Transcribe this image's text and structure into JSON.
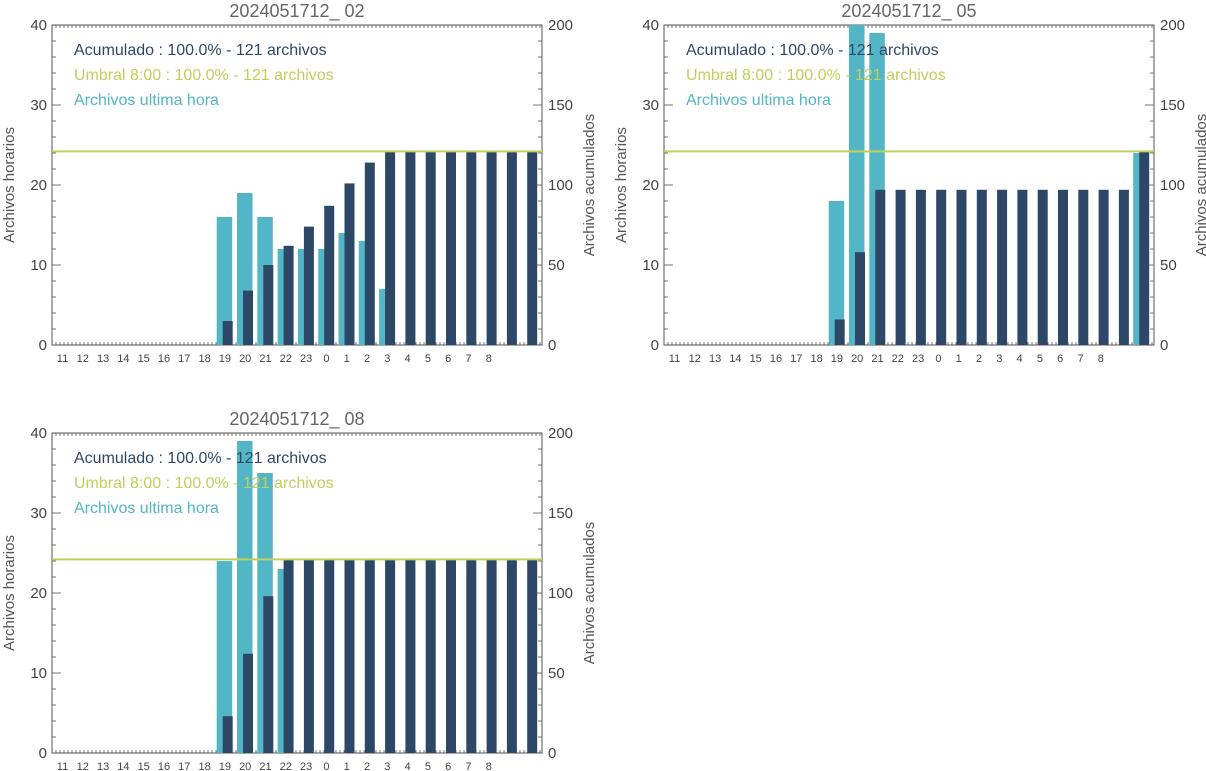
{
  "colors": {
    "hourly": "#52b6c6",
    "cumulative": "#2d4866",
    "threshold": "#c2cf59",
    "axis": "#555555"
  },
  "chart_data": [
    {
      "type": "bar",
      "title": "2024051712_ 02",
      "ylabel_left": "Archivos horarios",
      "ylabel_right": "Archivos acumulados",
      "ylim_left": [
        0,
        40
      ],
      "ylim_right": [
        0,
        200
      ],
      "yticks_left": [
        "0",
        "10",
        "20",
        "30",
        "40"
      ],
      "yticks_right": [
        "0",
        "50",
        "100",
        "150",
        "200"
      ],
      "categories": [
        "11",
        "12",
        "13",
        "14",
        "15",
        "16",
        "17",
        "18",
        "19",
        "20",
        "21",
        "22",
        "23",
        "0",
        "1",
        "2",
        "3",
        "4",
        "5",
        "6",
        "7",
        "8"
      ],
      "legend": [
        {
          "text": "Acumulado : 100.0% - 121 archivos"
        },
        {
          "text": "Umbral 8:00 : 100.0% - 121 archivos"
        },
        {
          "text": "Archivos ultima hora"
        }
      ],
      "series": [
        {
          "name": "Archivos ultima hora",
          "axis": "left",
          "values": [
            0,
            0,
            0,
            0,
            16,
            19,
            16,
            12,
            12,
            12,
            14,
            13,
            7,
            0,
            0,
            0,
            0,
            0,
            0,
            0,
            0,
            0
          ]
        },
        {
          "name": "Acumulado",
          "axis": "right",
          "values": [
            0,
            0,
            0,
            0,
            15,
            34,
            50,
            62,
            74,
            87,
            101,
            114,
            121,
            121,
            121,
            121,
            121,
            121,
            121,
            121,
            121,
            121
          ]
        }
      ],
      "threshold_right": 121
    },
    {
      "type": "bar",
      "title": "2024051712_ 05",
      "ylabel_left": "Archivos horarios",
      "ylabel_right": "Archivos acumulados",
      "ylim_left": [
        0,
        40
      ],
      "ylim_right": [
        0,
        200
      ],
      "yticks_left": [
        "0",
        "10",
        "20",
        "30",
        "40"
      ],
      "yticks_right": [
        "0",
        "50",
        "100",
        "150",
        "200"
      ],
      "categories": [
        "11",
        "12",
        "13",
        "14",
        "15",
        "16",
        "17",
        "18",
        "19",
        "20",
        "21",
        "22",
        "23",
        "0",
        "1",
        "2",
        "3",
        "4",
        "5",
        "6",
        "7",
        "8"
      ],
      "legend": [
        {
          "text": "Acumulado : 100.0% - 121 archivos"
        },
        {
          "text": "Umbral 8:00 : 100.0% - 121 archivos"
        },
        {
          "text": "Archivos ultima hora"
        }
      ],
      "series": [
        {
          "name": "Archivos ultima hora",
          "axis": "left",
          "values": [
            0,
            0,
            0,
            0,
            18,
            41,
            39,
            0,
            0,
            0,
            0,
            0,
            0,
            0,
            0,
            0,
            0,
            0,
            0,
            24,
            0,
            0
          ]
        },
        {
          "name": "Acumulado",
          "axis": "right",
          "values": [
            0,
            0,
            0,
            0,
            16,
            58,
            97,
            97,
            97,
            97,
            97,
            97,
            97,
            97,
            97,
            97,
            97,
            97,
            97,
            121,
            121,
            121
          ]
        }
      ],
      "threshold_right": 121
    },
    {
      "type": "bar",
      "title": "2024051712_ 08",
      "ylabel_left": "Archivos horarios",
      "ylabel_right": "Archivos acumulados",
      "ylim_left": [
        0,
        40
      ],
      "ylim_right": [
        0,
        200
      ],
      "yticks_left": [
        "0",
        "10",
        "20",
        "30",
        "40"
      ],
      "yticks_right": [
        "0",
        "50",
        "100",
        "150",
        "200"
      ],
      "categories": [
        "11",
        "12",
        "13",
        "14",
        "15",
        "16",
        "17",
        "18",
        "19",
        "20",
        "21",
        "22",
        "23",
        "0",
        "1",
        "2",
        "3",
        "4",
        "5",
        "6",
        "7",
        "8"
      ],
      "legend": [
        {
          "text": "Acumulado : 100.0% - 121 archivos"
        },
        {
          "text": "Umbral 8:00 : 100.0% - 121 archivos"
        },
        {
          "text": "Archivos ultima hora"
        }
      ],
      "series": [
        {
          "name": "Archivos ultima hora",
          "axis": "left",
          "values": [
            0,
            0,
            0,
            0,
            24,
            39,
            35,
            23,
            0,
            0,
            0,
            0,
            0,
            0,
            0,
            0,
            0,
            0,
            0,
            0,
            0,
            0
          ]
        },
        {
          "name": "Acumulado",
          "axis": "right",
          "values": [
            0,
            0,
            0,
            0,
            23,
            62,
            98,
            121,
            121,
            121,
            121,
            121,
            121,
            121,
            121,
            121,
            121,
            121,
            121,
            121,
            121,
            121
          ]
        }
      ],
      "threshold_right": 121
    }
  ]
}
